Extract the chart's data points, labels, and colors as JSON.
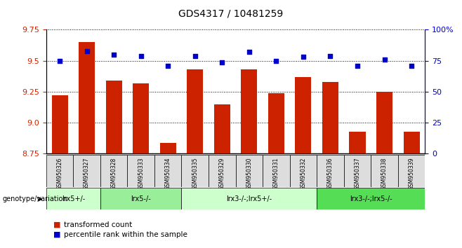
{
  "title": "GDS4317 / 10481259",
  "samples": [
    "GSM950326",
    "GSM950327",
    "GSM950328",
    "GSM950333",
    "GSM950334",
    "GSM950335",
    "GSM950329",
    "GSM950330",
    "GSM950331",
    "GSM950332",
    "GSM950336",
    "GSM950337",
    "GSM950338",
    "GSM950339"
  ],
  "bar_values": [
    9.22,
    9.65,
    9.34,
    9.32,
    8.84,
    9.43,
    9.15,
    9.43,
    9.24,
    9.37,
    9.33,
    8.93,
    9.25,
    8.93
  ],
  "dot_values": [
    75,
    83,
    80,
    79,
    71,
    79,
    74,
    82,
    75,
    78,
    79,
    71,
    76,
    71
  ],
  "ylim_left": [
    8.75,
    9.75
  ],
  "ylim_right": [
    0,
    100
  ],
  "yticks_left": [
    8.75,
    9.0,
    9.25,
    9.5,
    9.75
  ],
  "yticks_right": [
    0,
    25,
    50,
    75,
    100
  ],
  "bar_color": "#cc2200",
  "dot_color": "#0000cc",
  "bg_color": "#ffffff",
  "groups": [
    {
      "label": "lrx5+/-",
      "start": 0,
      "end": 2,
      "color": "#ccffcc"
    },
    {
      "label": "lrx5-/-",
      "start": 2,
      "end": 5,
      "color": "#99ee99"
    },
    {
      "label": "lrx3-/-;lrx5+/-",
      "start": 5,
      "end": 10,
      "color": "#ccffcc"
    },
    {
      "label": "lrx3-/-;lrx5-/-",
      "start": 10,
      "end": 14,
      "color": "#55dd55"
    }
  ],
  "legend_items": [
    {
      "label": "transformed count",
      "color": "#cc2200"
    },
    {
      "label": "percentile rank within the sample",
      "color": "#0000cc"
    }
  ],
  "genotype_label": "genotype/variation"
}
